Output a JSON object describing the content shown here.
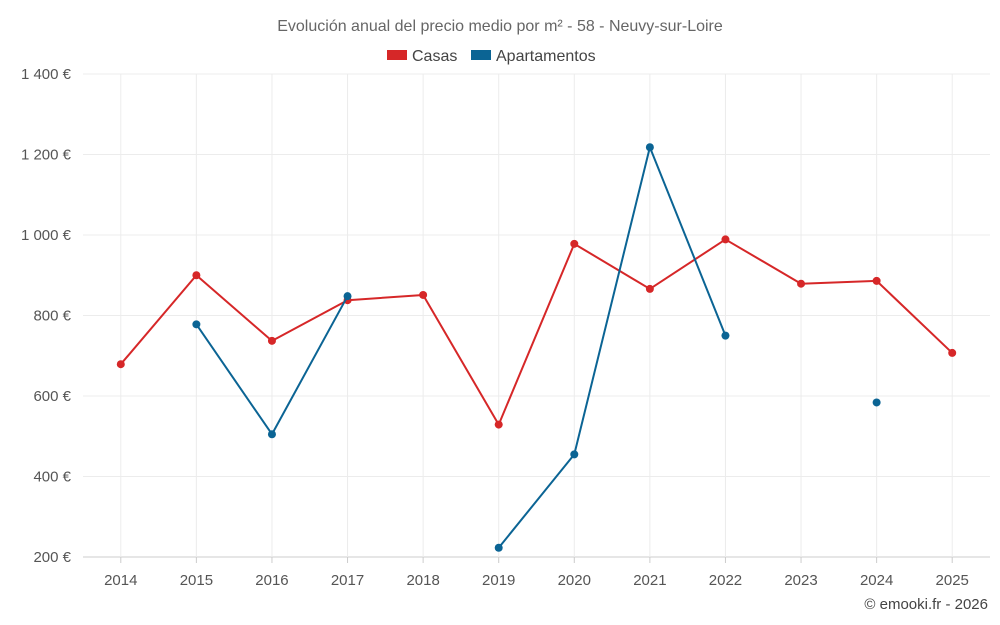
{
  "chart_data": {
    "type": "line",
    "title": "Evolución anual del precio medio por m² - 58 - Neuvy-sur-Loire",
    "categories": [
      "2014",
      "2015",
      "2016",
      "2017",
      "2018",
      "2019",
      "2020",
      "2021",
      "2022",
      "2023",
      "2024",
      "2025"
    ],
    "series": [
      {
        "name": "Casas",
        "color": "#d62728",
        "values": [
          679,
          900,
          737,
          838,
          851,
          529,
          978,
          866,
          989,
          879,
          886,
          707
        ]
      },
      {
        "name": "Apartamentos",
        "color": "#0b6494",
        "values": [
          null,
          778,
          505,
          848,
          null,
          223,
          455,
          1218,
          750,
          null,
          584,
          null
        ]
      }
    ],
    "y_ticks": [
      200,
      400,
      600,
      800,
      1000,
      1200,
      1400
    ],
    "y_tick_labels": [
      "200 €",
      "400 €",
      "600 €",
      "800 €",
      "1 000 €",
      "1 200 €",
      "1 400 €"
    ],
    "ylim": [
      200,
      1400
    ],
    "xlabel": "",
    "ylabel": "",
    "grid": true,
    "legend_position": "top-center",
    "credit": "© emooki.fr - 2026"
  }
}
